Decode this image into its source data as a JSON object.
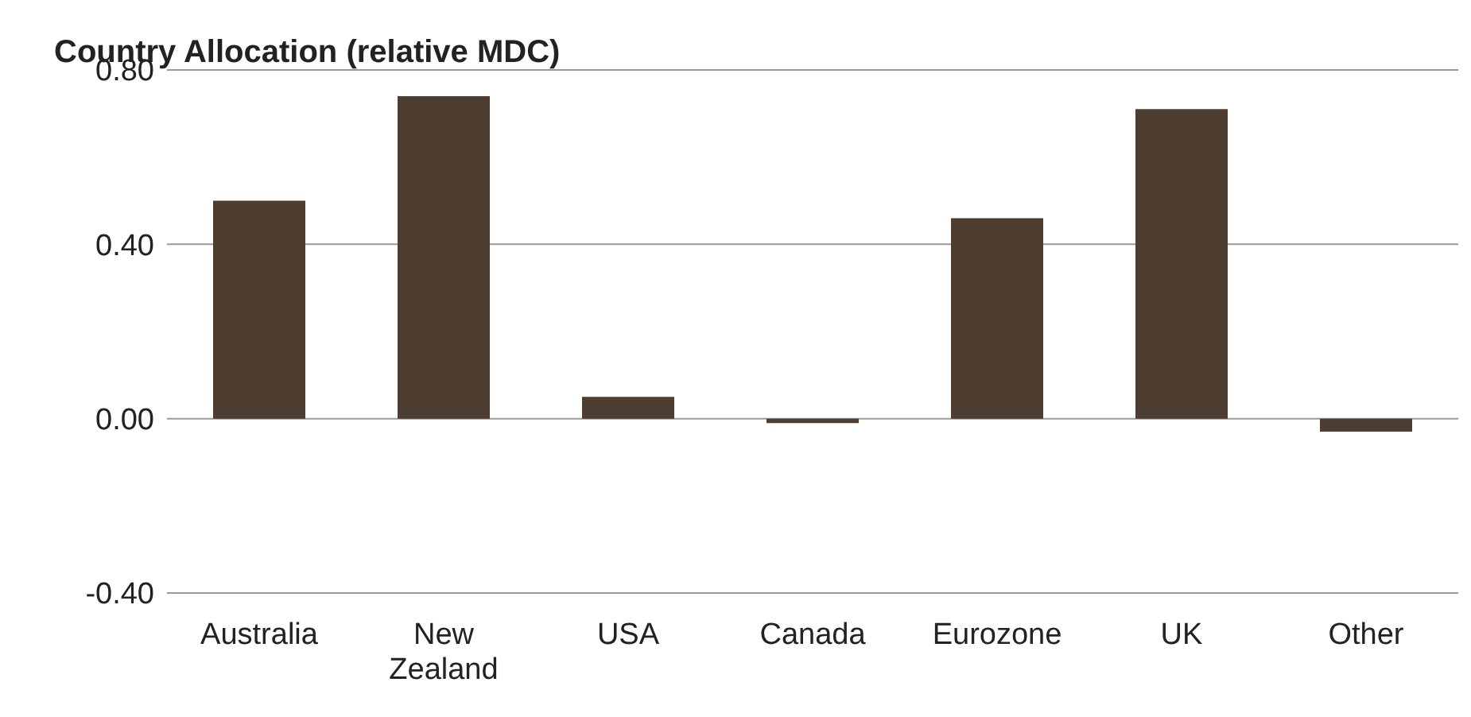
{
  "chart_data": {
    "type": "bar",
    "title": "Country Allocation (relative MDC)",
    "categories": [
      "Australia",
      "New Zealand",
      "USA",
      "Canada",
      "Eurozone",
      "UK",
      "Other"
    ],
    "values": [
      0.5,
      0.74,
      0.05,
      -0.01,
      0.46,
      0.71,
      -0.03
    ],
    "color": "#4e3d31",
    "ylim": [
      -0.4,
      0.8
    ],
    "yticks": [
      {
        "value": -0.4,
        "label": "-0.40"
      },
      {
        "value": 0,
        "label": "0.00"
      },
      {
        "value": 0.4,
        "label": "0.40"
      },
      {
        "value": 0.8,
        "label": "0.80"
      }
    ],
    "grid": "y"
  }
}
